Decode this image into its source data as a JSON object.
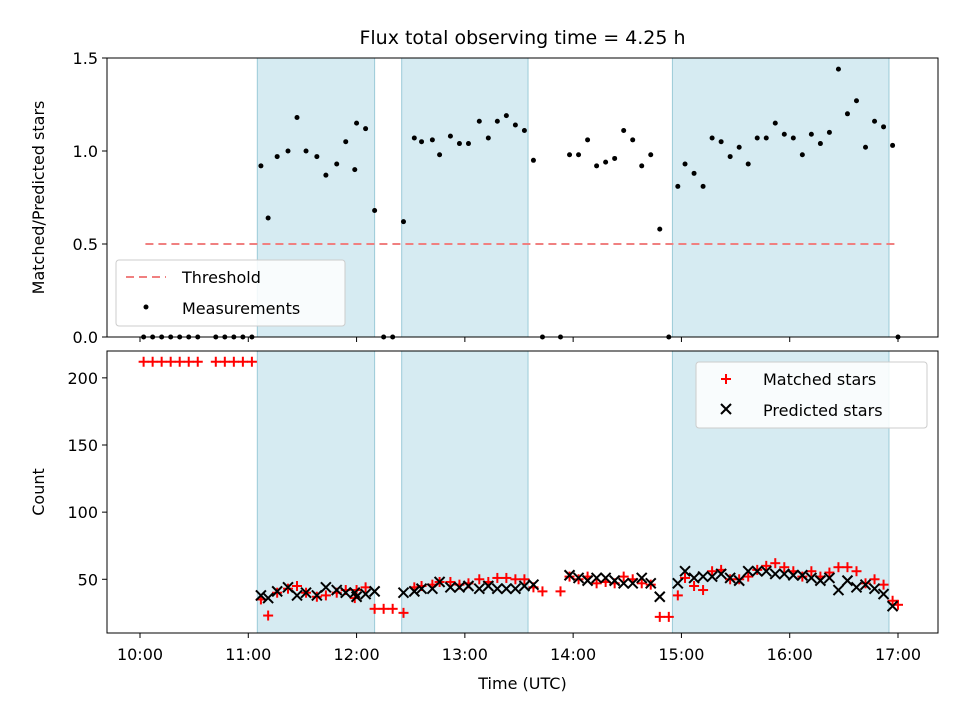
{
  "chart_data": [
    {
      "type": "scatter",
      "title": "Flux total observing time = 4.25 h",
      "xlabel": "",
      "ylabel": "Matched/Predicted stars",
      "ylim": [
        0,
        1.5
      ],
      "yticks": [
        "0.0",
        "0.5",
        "1.0",
        "1.5"
      ],
      "legend_position": "lower-left",
      "shaded_intervals": [
        [
          "11:05",
          "12:10"
        ],
        [
          "12:25",
          "13:35"
        ],
        [
          "14:55",
          "16:55"
        ]
      ],
      "threshold": {
        "name": "Threshold",
        "value": 0.5,
        "x_start": "10:03",
        "x_end": "17:00",
        "color": "#f08080"
      },
      "series": [
        {
          "name": "Measurements",
          "color": "#000000",
          "points": [
            [
              "10:02",
              0
            ],
            [
              "10:07",
              0
            ],
            [
              "10:12",
              0
            ],
            [
              "10:17",
              0
            ],
            [
              "10:22",
              0
            ],
            [
              "10:27",
              0
            ],
            [
              "10:32",
              0
            ],
            [
              "10:42",
              0
            ],
            [
              "10:47",
              0
            ],
            [
              "10:52",
              0
            ],
            [
              "10:57",
              0
            ],
            [
              "11:02",
              0
            ],
            [
              "11:07",
              0.92
            ],
            [
              "11:11",
              0.64
            ],
            [
              "11:16",
              0.97
            ],
            [
              "11:22",
              1.0
            ],
            [
              "11:27",
              1.18
            ],
            [
              "11:32",
              1.0
            ],
            [
              "11:38",
              0.97
            ],
            [
              "11:43",
              0.87
            ],
            [
              "11:49",
              0.93
            ],
            [
              "11:54",
              1.05
            ],
            [
              "11:59",
              0.9
            ],
            [
              "12:00",
              1.15
            ],
            [
              "12:05",
              1.12
            ],
            [
              "12:10",
              0.68
            ],
            [
              "12:15",
              0
            ],
            [
              "12:20",
              0
            ],
            [
              "12:26",
              0.62
            ],
            [
              "12:32",
              1.07
            ],
            [
              "12:36",
              1.05
            ],
            [
              "12:42",
              1.06
            ],
            [
              "12:46",
              0.98
            ],
            [
              "12:52",
              1.08
            ],
            [
              "12:57",
              1.04
            ],
            [
              "13:02",
              1.04
            ],
            [
              "13:08",
              1.16
            ],
            [
              "13:13",
              1.07
            ],
            [
              "13:18",
              1.16
            ],
            [
              "13:23",
              1.19
            ],
            [
              "13:28",
              1.14
            ],
            [
              "13:33",
              1.11
            ],
            [
              "13:38",
              0.95
            ],
            [
              "13:43",
              0
            ],
            [
              "13:53",
              0
            ],
            [
              "13:58",
              0.98
            ],
            [
              "14:03",
              0.98
            ],
            [
              "14:08",
              1.06
            ],
            [
              "14:13",
              0.92
            ],
            [
              "14:18",
              0.94
            ],
            [
              "14:23",
              0.96
            ],
            [
              "14:28",
              1.11
            ],
            [
              "14:33",
              1.06
            ],
            [
              "14:38",
              0.92
            ],
            [
              "14:43",
              0.98
            ],
            [
              "14:48",
              0.58
            ],
            [
              "14:53",
              0
            ],
            [
              "14:58",
              0.81
            ],
            [
              "15:02",
              0.93
            ],
            [
              "15:07",
              0.88
            ],
            [
              "15:12",
              0.81
            ],
            [
              "15:17",
              1.07
            ],
            [
              "15:22",
              1.05
            ],
            [
              "15:27",
              0.97
            ],
            [
              "15:32",
              1.02
            ],
            [
              "15:37",
              0.93
            ],
            [
              "15:42",
              1.07
            ],
            [
              "15:47",
              1.07
            ],
            [
              "15:52",
              1.15
            ],
            [
              "15:57",
              1.09
            ],
            [
              "16:02",
              1.07
            ],
            [
              "16:07",
              0.98
            ],
            [
              "16:12",
              1.09
            ],
            [
              "16:17",
              1.04
            ],
            [
              "16:22",
              1.1
            ],
            [
              "16:27",
              1.44
            ],
            [
              "16:32",
              1.2
            ],
            [
              "16:37",
              1.27
            ],
            [
              "16:42",
              1.02
            ],
            [
              "16:47",
              1.16
            ],
            [
              "16:52",
              1.13
            ],
            [
              "16:57",
              1.03
            ],
            [
              "17:00",
              0
            ]
          ]
        }
      ]
    },
    {
      "type": "scatter",
      "title": "",
      "xlabel": "Time (UTC)",
      "ylabel": "Count",
      "ylim": [
        10,
        220
      ],
      "yticks": [
        "50",
        "100",
        "150",
        "200"
      ],
      "xticks": [
        "10:00",
        "11:00",
        "12:00",
        "13:00",
        "14:00",
        "15:00",
        "16:00",
        "17:00"
      ],
      "legend_position": "upper-right",
      "shaded_intervals": [
        [
          "11:05",
          "12:10"
        ],
        [
          "12:25",
          "13:35"
        ],
        [
          "14:55",
          "16:55"
        ]
      ],
      "series": [
        {
          "name": "Matched stars",
          "marker": "plus",
          "color": "#ff0000",
          "points": [
            [
              "10:02",
              212
            ],
            [
              "10:07",
              212
            ],
            [
              "10:12",
              212
            ],
            [
              "10:17",
              212
            ],
            [
              "10:22",
              212
            ],
            [
              "10:27",
              212
            ],
            [
              "10:32",
              212
            ],
            [
              "10:42",
              212
            ],
            [
              "10:47",
              212
            ],
            [
              "10:52",
              212
            ],
            [
              "10:57",
              212
            ],
            [
              "11:02",
              212
            ],
            [
              "11:07",
              35
            ],
            [
              "11:11",
              23
            ],
            [
              "11:16",
              40
            ],
            [
              "11:22",
              43
            ],
            [
              "11:27",
              45
            ],
            [
              "11:32",
              40
            ],
            [
              "11:38",
              37
            ],
            [
              "11:43",
              38
            ],
            [
              "11:49",
              40
            ],
            [
              "11:54",
              42
            ],
            [
              "11:59",
              36
            ],
            [
              "12:00",
              42
            ],
            [
              "12:05",
              44
            ],
            [
              "12:10",
              28
            ],
            [
              "12:15",
              28
            ],
            [
              "12:20",
              28
            ],
            [
              "12:26",
              25
            ],
            [
              "12:32",
              44
            ],
            [
              "12:36",
              45
            ],
            [
              "12:42",
              46
            ],
            [
              "12:46",
              48
            ],
            [
              "12:52",
              48
            ],
            [
              "12:57",
              46
            ],
            [
              "13:02",
              47
            ],
            [
              "13:08",
              50
            ],
            [
              "13:13",
              48
            ],
            [
              "13:18",
              51
            ],
            [
              "13:23",
              51
            ],
            [
              "13:28",
              50
            ],
            [
              "13:33",
              50
            ],
            [
              "13:38",
              44
            ],
            [
              "13:43",
              41
            ],
            [
              "13:53",
              41
            ],
            [
              "13:58",
              52
            ],
            [
              "14:03",
              50
            ],
            [
              "14:08",
              52
            ],
            [
              "14:13",
              47
            ],
            [
              "14:18",
              48
            ],
            [
              "14:23",
              47
            ],
            [
              "14:28",
              52
            ],
            [
              "14:33",
              50
            ],
            [
              "14:38",
              47
            ],
            [
              "14:43",
              46
            ],
            [
              "14:48",
              22
            ],
            [
              "14:53",
              22
            ],
            [
              "14:58",
              38
            ],
            [
              "15:02",
              51
            ],
            [
              "15:07",
              45
            ],
            [
              "15:12",
              42
            ],
            [
              "15:17",
              56
            ],
            [
              "15:22",
              57
            ],
            [
              "15:27",
              50
            ],
            [
              "15:32",
              50
            ],
            [
              "15:37",
              52
            ],
            [
              "15:42",
              57
            ],
            [
              "15:47",
              60
            ],
            [
              "15:52",
              62
            ],
            [
              "15:57",
              59
            ],
            [
              "16:02",
              56
            ],
            [
              "16:07",
              52
            ],
            [
              "16:12",
              56
            ],
            [
              "16:17",
              52
            ],
            [
              "16:22",
              55
            ],
            [
              "16:27",
              59
            ],
            [
              "16:32",
              59
            ],
            [
              "16:37",
              56
            ],
            [
              "16:42",
              47
            ],
            [
              "16:47",
              50
            ],
            [
              "16:52",
              46
            ],
            [
              "16:57",
              34
            ],
            [
              "17:00",
              31
            ]
          ]
        },
        {
          "name": "Predicted stars",
          "marker": "x",
          "color": "#000000",
          "points": [
            [
              "11:07",
              38
            ],
            [
              "11:11",
              36
            ],
            [
              "11:16",
              41
            ],
            [
              "11:22",
              44
            ],
            [
              "11:27",
              38
            ],
            [
              "11:32",
              40
            ],
            [
              "11:38",
              38
            ],
            [
              "11:43",
              44
            ],
            [
              "11:49",
              42
            ],
            [
              "11:54",
              40
            ],
            [
              "11:59",
              40
            ],
            [
              "12:00",
              37
            ],
            [
              "12:05",
              39
            ],
            [
              "12:10",
              41
            ],
            [
              "12:26",
              40
            ],
            [
              "12:32",
              41
            ],
            [
              "12:36",
              43
            ],
            [
              "12:42",
              43
            ],
            [
              "12:46",
              48
            ],
            [
              "12:52",
              44
            ],
            [
              "12:57",
              44
            ],
            [
              "13:02",
              45
            ],
            [
              "13:08",
              43
            ],
            [
              "13:13",
              45
            ],
            [
              "13:18",
              43
            ],
            [
              "13:23",
              43
            ],
            [
              "13:28",
              43
            ],
            [
              "13:33",
              45
            ],
            [
              "13:38",
              46
            ],
            [
              "13:58",
              53
            ],
            [
              "14:03",
              51
            ],
            [
              "14:08",
              49
            ],
            [
              "14:13",
              51
            ],
            [
              "14:18",
              51
            ],
            [
              "14:23",
              49
            ],
            [
              "14:28",
              47
            ],
            [
              "14:33",
              47
            ],
            [
              "14:38",
              51
            ],
            [
              "14:43",
              47
            ],
            [
              "14:48",
              37
            ],
            [
              "14:58",
              47
            ],
            [
              "15:02",
              56
            ],
            [
              "15:07",
              51
            ],
            [
              "15:12",
              52
            ],
            [
              "15:17",
              52
            ],
            [
              "15:22",
              54
            ],
            [
              "15:27",
              51
            ],
            [
              "15:32",
              49
            ],
            [
              "15:37",
              56
            ],
            [
              "15:42",
              56
            ],
            [
              "15:47",
              56
            ],
            [
              "15:52",
              54
            ],
            [
              "15:57",
              54
            ],
            [
              "16:02",
              53
            ],
            [
              "16:07",
              53
            ],
            [
              "16:12",
              51
            ],
            [
              "16:17",
              49
            ],
            [
              "16:22",
              51
            ],
            [
              "16:27",
              42
            ],
            [
              "16:32",
              49
            ],
            [
              "16:37",
              44
            ],
            [
              "16:42",
              46
            ],
            [
              "16:47",
              43
            ],
            [
              "16:52",
              39
            ],
            [
              "16:57",
              30
            ]
          ]
        }
      ]
    }
  ]
}
